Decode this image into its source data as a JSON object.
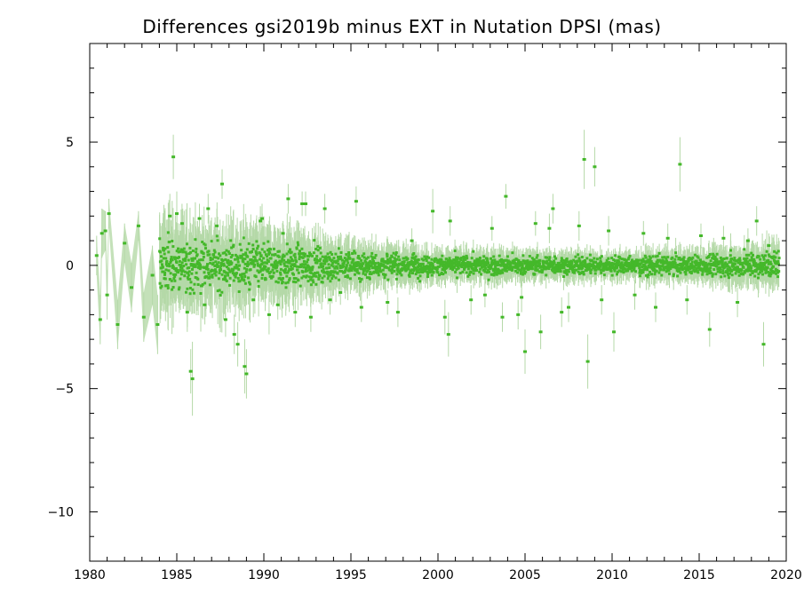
{
  "chart_data": {
    "type": "scatter",
    "title": "Differences gsi2019b minus EXT in Nutation DPSI (mas)",
    "xlabel": "",
    "ylabel": "",
    "xlim": [
      1980,
      2020
    ],
    "ylim": [
      -12,
      9
    ],
    "x_ticks": [
      1980,
      1985,
      1990,
      1995,
      2000,
      2005,
      2010,
      2015,
      2020
    ],
    "x_tick_labels": [
      "1980",
      "1985",
      "1990",
      "1995",
      "2000",
      "2005",
      "2010",
      "2015",
      "2020"
    ],
    "y_ticks": [
      -10,
      -5,
      0,
      5
    ],
    "y_tick_labels": [
      "−10",
      "−5",
      "0",
      "5"
    ],
    "grid": false,
    "legend": "none",
    "marker_color": "#44b82a",
    "errorbar_color": "#b5d9a8",
    "points": [
      {
        "x": 1980.4,
        "y": 0.4,
        "err": 0.8
      },
      {
        "x": 1980.6,
        "y": -2.2,
        "err": 1.0
      },
      {
        "x": 1980.7,
        "y": 1.3,
        "err": 1.0
      },
      {
        "x": 1980.9,
        "y": 1.4,
        "err": 0.8
      },
      {
        "x": 1981.0,
        "y": -1.2,
        "err": 1.0
      },
      {
        "x": 1981.1,
        "y": 2.1,
        "err": 0.6
      },
      {
        "x": 1981.6,
        "y": -2.4,
        "err": 1.0
      },
      {
        "x": 1982.0,
        "y": 0.9,
        "err": 0.8
      },
      {
        "x": 1982.4,
        "y": -0.9,
        "err": 1.0
      },
      {
        "x": 1982.8,
        "y": 1.6,
        "err": 0.6
      },
      {
        "x": 1983.1,
        "y": -2.1,
        "err": 1.0
      },
      {
        "x": 1983.6,
        "y": -0.4,
        "err": 1.2
      },
      {
        "x": 1983.9,
        "y": -2.4,
        "err": 1.2
      },
      {
        "x": 1984.6,
        "y": 2.0,
        "err": 0.9
      },
      {
        "x": 1984.8,
        "y": 4.4,
        "err": 0.9
      },
      {
        "x": 1985.0,
        "y": 2.1,
        "err": 0.9
      },
      {
        "x": 1985.3,
        "y": 1.7,
        "err": 0.8
      },
      {
        "x": 1985.6,
        "y": -1.9,
        "err": 0.8
      },
      {
        "x": 1985.8,
        "y": -4.3,
        "err": 0.9
      },
      {
        "x": 1985.9,
        "y": -4.6,
        "err": 1.5
      },
      {
        "x": 1986.3,
        "y": 1.9,
        "err": 0.6
      },
      {
        "x": 1986.6,
        "y": -1.6,
        "err": 0.6
      },
      {
        "x": 1986.8,
        "y": 2.3,
        "err": 0.6
      },
      {
        "x": 1987.3,
        "y": 1.6,
        "err": 0.7
      },
      {
        "x": 1987.6,
        "y": 3.3,
        "err": 0.6
      },
      {
        "x": 1987.8,
        "y": -2.2,
        "err": 0.7
      },
      {
        "x": 1988.3,
        "y": -2.8,
        "err": 0.8
      },
      {
        "x": 1988.5,
        "y": -3.2,
        "err": 0.9
      },
      {
        "x": 1988.9,
        "y": -4.1,
        "err": 1.1
      },
      {
        "x": 1989.0,
        "y": -4.4,
        "err": 1.0
      },
      {
        "x": 1989.4,
        "y": -1.4,
        "err": 0.7
      },
      {
        "x": 1989.8,
        "y": 1.8,
        "err": 0.6
      },
      {
        "x": 1989.9,
        "y": 1.9,
        "err": 0.6
      },
      {
        "x": 1990.3,
        "y": -2.0,
        "err": 0.8
      },
      {
        "x": 1990.8,
        "y": -1.6,
        "err": 0.6
      },
      {
        "x": 1991.1,
        "y": 1.3,
        "err": 0.5
      },
      {
        "x": 1991.4,
        "y": 2.7,
        "err": 0.6
      },
      {
        "x": 1991.8,
        "y": -1.9,
        "err": 0.6
      },
      {
        "x": 1992.2,
        "y": 2.5,
        "err": 0.5
      },
      {
        "x": 1992.4,
        "y": 2.5,
        "err": 0.5
      },
      {
        "x": 1992.7,
        "y": -2.1,
        "err": 0.6
      },
      {
        "x": 1993.5,
        "y": 2.3,
        "err": 0.6
      },
      {
        "x": 1993.8,
        "y": -1.4,
        "err": 0.6
      },
      {
        "x": 1994.4,
        "y": -1.1,
        "err": 0.5
      },
      {
        "x": 1995.3,
        "y": 2.6,
        "err": 0.6
      },
      {
        "x": 1995.6,
        "y": -1.7,
        "err": 0.6
      },
      {
        "x": 1997.1,
        "y": -1.5,
        "err": 0.5
      },
      {
        "x": 1997.7,
        "y": -1.9,
        "err": 0.6
      },
      {
        "x": 1998.5,
        "y": 1.0,
        "err": 0.5
      },
      {
        "x": 1999.7,
        "y": 2.2,
        "err": 0.9
      },
      {
        "x": 2000.4,
        "y": -2.1,
        "err": 0.7
      },
      {
        "x": 2000.6,
        "y": -2.8,
        "err": 0.9
      },
      {
        "x": 2000.7,
        "y": 1.8,
        "err": 0.6
      },
      {
        "x": 2001.9,
        "y": -1.4,
        "err": 0.6
      },
      {
        "x": 2002.7,
        "y": -1.2,
        "err": 0.5
      },
      {
        "x": 2003.1,
        "y": 1.5,
        "err": 0.5
      },
      {
        "x": 2003.7,
        "y": -2.1,
        "err": 0.6
      },
      {
        "x": 2003.9,
        "y": 2.8,
        "err": 0.5
      },
      {
        "x": 2004.6,
        "y": -2.0,
        "err": 0.6
      },
      {
        "x": 2004.8,
        "y": -1.3,
        "err": 0.6
      },
      {
        "x": 2005.0,
        "y": -3.5,
        "err": 0.9
      },
      {
        "x": 2005.6,
        "y": 1.7,
        "err": 0.5
      },
      {
        "x": 2005.9,
        "y": -2.7,
        "err": 0.7
      },
      {
        "x": 2006.4,
        "y": 1.5,
        "err": 0.6
      },
      {
        "x": 2006.6,
        "y": 2.3,
        "err": 0.6
      },
      {
        "x": 2007.1,
        "y": -1.9,
        "err": 0.6
      },
      {
        "x": 2007.5,
        "y": -1.7,
        "err": 0.6
      },
      {
        "x": 2008.1,
        "y": 1.6,
        "err": 0.6
      },
      {
        "x": 2008.4,
        "y": 4.3,
        "err": 1.2
      },
      {
        "x": 2008.6,
        "y": -3.9,
        "err": 1.1
      },
      {
        "x": 2009.0,
        "y": 4.0,
        "err": 0.8
      },
      {
        "x": 2009.4,
        "y": -1.4,
        "err": 0.6
      },
      {
        "x": 2009.8,
        "y": 1.4,
        "err": 0.6
      },
      {
        "x": 2010.1,
        "y": -2.7,
        "err": 0.8
      },
      {
        "x": 2011.3,
        "y": -1.2,
        "err": 0.6
      },
      {
        "x": 2011.8,
        "y": 1.3,
        "err": 0.5
      },
      {
        "x": 2012.5,
        "y": -1.7,
        "err": 0.6
      },
      {
        "x": 2013.2,
        "y": 1.1,
        "err": 0.6
      },
      {
        "x": 2013.9,
        "y": 4.1,
        "err": 1.1
      },
      {
        "x": 2014.3,
        "y": -1.4,
        "err": 0.6
      },
      {
        "x": 2015.1,
        "y": 1.2,
        "err": 0.5
      },
      {
        "x": 2015.6,
        "y": -2.6,
        "err": 0.7
      },
      {
        "x": 2016.4,
        "y": 1.1,
        "err": 0.5
      },
      {
        "x": 2017.2,
        "y": -1.5,
        "err": 0.6
      },
      {
        "x": 2017.8,
        "y": 1.0,
        "err": 0.5
      },
      {
        "x": 2018.3,
        "y": 1.8,
        "err": 0.6
      },
      {
        "x": 2018.7,
        "y": -3.2,
        "err": 0.9
      },
      {
        "x": 2019.0,
        "y": 0.8,
        "err": 0.5
      },
      {
        "x": 2019.3,
        "y": -0.3,
        "err": 0.4
      }
    ],
    "dense_scatter": {
      "x_range": [
        1984.0,
        2019.6
      ],
      "envelope": [
        {
          "x": 1984.0,
          "sd": 0.55
        },
        {
          "x": 1990.0,
          "sd": 0.45
        },
        {
          "x": 1995.0,
          "sd": 0.28
        },
        {
          "x": 2000.0,
          "sd": 0.2
        },
        {
          "x": 2005.0,
          "sd": 0.18
        },
        {
          "x": 2010.0,
          "sd": 0.17
        },
        {
          "x": 2015.0,
          "sd": 0.2
        },
        {
          "x": 2019.6,
          "sd": 0.28
        }
      ]
    }
  }
}
